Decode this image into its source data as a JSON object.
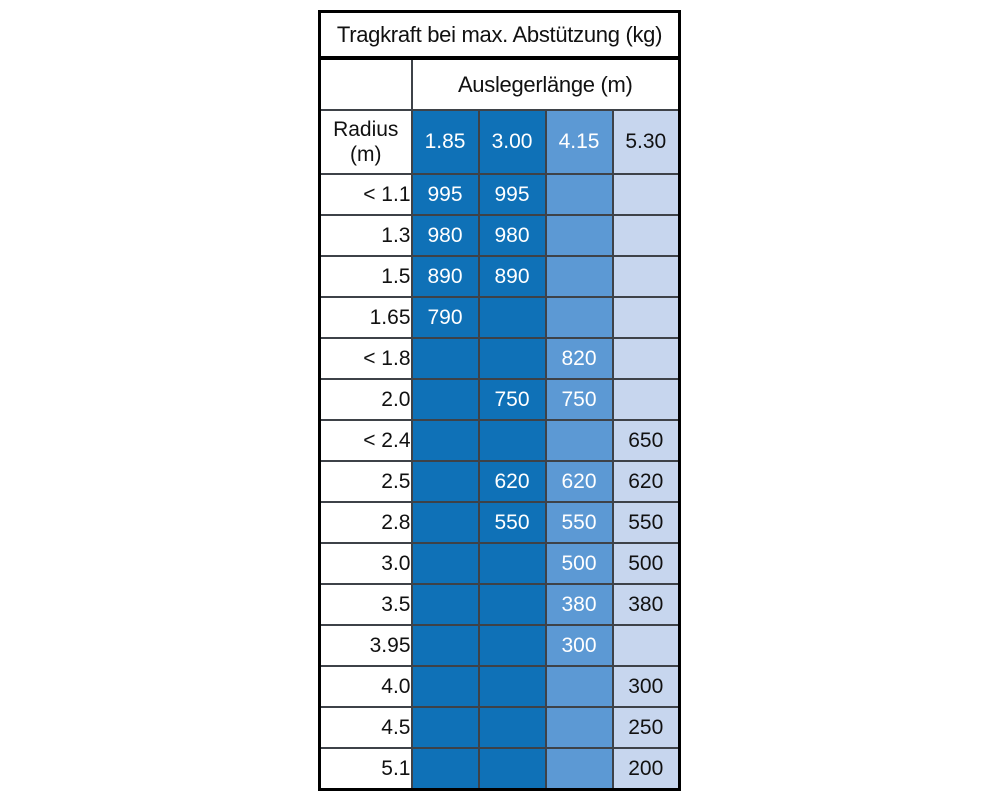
{
  "colors": {
    "column_dark_blue": "#0F71B7",
    "column_medium_blue": "#5C99D4",
    "column_light_blue": "#C7D6EE",
    "grid_line": "#3E4248",
    "outer_border": "#000000",
    "text_dark": "#111111",
    "text_light": "#FFFFFF",
    "background": "#FFFFFF"
  },
  "chart_data": {
    "type": "table",
    "title": "Tragkraft bei max. Abstützung (kg)",
    "column_group_label": "Auslegerlänge (m)",
    "row_label": "Radius (m)",
    "row_label_lines": [
      "Radius",
      "(m)"
    ],
    "columns": [
      "1.85",
      "3.00",
      "4.15",
      "5.30"
    ],
    "rows": [
      {
        "radius": "< 1.1",
        "values": [
          "995",
          "995",
          "",
          ""
        ]
      },
      {
        "radius": "1.3",
        "values": [
          "980",
          "980",
          "",
          ""
        ]
      },
      {
        "radius": "1.5",
        "values": [
          "890",
          "890",
          "",
          ""
        ]
      },
      {
        "radius": "1.65",
        "values": [
          "790",
          "",
          "",
          ""
        ]
      },
      {
        "radius": "< 1.8",
        "values": [
          "",
          "",
          "820",
          ""
        ]
      },
      {
        "radius": "2.0",
        "values": [
          "",
          "750",
          "750",
          ""
        ]
      },
      {
        "radius": "< 2.4",
        "values": [
          "",
          "",
          "",
          "650"
        ]
      },
      {
        "radius": "2.5",
        "values": [
          "",
          "620",
          "620",
          "620"
        ]
      },
      {
        "radius": "2.8",
        "values": [
          "",
          "550",
          "550",
          "550"
        ]
      },
      {
        "radius": "3.0",
        "values": [
          "",
          "",
          "500",
          "500"
        ]
      },
      {
        "radius": "3.5",
        "values": [
          "",
          "",
          "380",
          "380"
        ]
      },
      {
        "radius": "3.95",
        "values": [
          "",
          "",
          "300",
          ""
        ]
      },
      {
        "radius": "4.0",
        "values": [
          "",
          "",
          "",
          "300"
        ]
      },
      {
        "radius": "4.5",
        "values": [
          "",
          "",
          "",
          "250"
        ]
      },
      {
        "radius": "5.1",
        "values": [
          "",
          "",
          "",
          "200"
        ]
      }
    ],
    "layout": {
      "grid": "on",
      "column_fill_styles": [
        "dark-blue",
        "dark-blue",
        "medium-blue",
        "light-blue"
      ],
      "value_text_colors": [
        "white",
        "white",
        "white",
        "black"
      ]
    }
  }
}
